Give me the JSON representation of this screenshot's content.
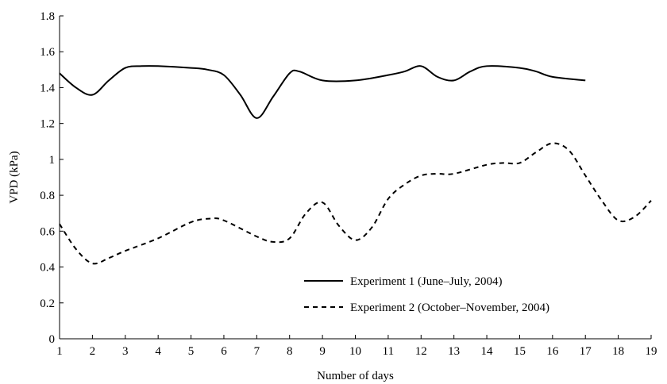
{
  "chart_data": {
    "type": "line",
    "title": "",
    "xlabel": "Number of days",
    "ylabel": "VPD (kPa)",
    "xlim": [
      1,
      19
    ],
    "ylim": [
      0,
      1.8
    ],
    "x_ticks": [
      "1",
      "2",
      "3",
      "4",
      "5",
      "6",
      "7",
      "8",
      "9",
      "10",
      "11",
      "12",
      "13",
      "14",
      "15",
      "16",
      "17",
      "18",
      "19"
    ],
    "y_ticks": [
      "0",
      "0.2",
      "0.4",
      "0.6",
      "0.8",
      "1",
      "1.2",
      "1.4",
      "1.6",
      "1.8"
    ],
    "grid": false,
    "legend_position": "bottom-right",
    "series": [
      {
        "name": "Experiment 1 (June–July, 2004)",
        "style": "solid",
        "color": "#000000",
        "points": [
          [
            1,
            1.48
          ],
          [
            1.5,
            1.4
          ],
          [
            2,
            1.36
          ],
          [
            2.5,
            1.44
          ],
          [
            3,
            1.51
          ],
          [
            3.5,
            1.52
          ],
          [
            4,
            1.52
          ],
          [
            5,
            1.51
          ],
          [
            5.5,
            1.5
          ],
          [
            6,
            1.47
          ],
          [
            6.5,
            1.36
          ],
          [
            7,
            1.23
          ],
          [
            7.5,
            1.35
          ],
          [
            8,
            1.48
          ],
          [
            8.3,
            1.49
          ],
          [
            9,
            1.44
          ],
          [
            10,
            1.44
          ],
          [
            11,
            1.47
          ],
          [
            11.5,
            1.49
          ],
          [
            12,
            1.52
          ],
          [
            12.5,
            1.46
          ],
          [
            13,
            1.44
          ],
          [
            13.5,
            1.49
          ],
          [
            14,
            1.52
          ],
          [
            15,
            1.51
          ],
          [
            15.5,
            1.49
          ],
          [
            16,
            1.46
          ],
          [
            17,
            1.44
          ]
        ]
      },
      {
        "name": "Experiment 2 (October–November, 2004)",
        "style": "dashed",
        "color": "#000000",
        "points": [
          [
            1,
            0.64
          ],
          [
            1.5,
            0.5
          ],
          [
            2,
            0.42
          ],
          [
            2.5,
            0.45
          ],
          [
            3,
            0.49
          ],
          [
            4,
            0.56
          ],
          [
            5,
            0.65
          ],
          [
            5.6,
            0.67
          ],
          [
            6,
            0.66
          ],
          [
            7,
            0.57
          ],
          [
            7.5,
            0.54
          ],
          [
            8,
            0.56
          ],
          [
            8.5,
            0.7
          ],
          [
            9,
            0.76
          ],
          [
            9.5,
            0.63
          ],
          [
            10,
            0.55
          ],
          [
            10.5,
            0.62
          ],
          [
            11,
            0.78
          ],
          [
            11.5,
            0.86
          ],
          [
            12,
            0.91
          ],
          [
            12.5,
            0.92
          ],
          [
            13,
            0.92
          ],
          [
            14,
            0.97
          ],
          [
            14.5,
            0.98
          ],
          [
            15,
            0.98
          ],
          [
            15.5,
            1.04
          ],
          [
            16,
            1.09
          ],
          [
            16.5,
            1.05
          ],
          [
            17,
            0.91
          ],
          [
            17.5,
            0.77
          ],
          [
            18,
            0.66
          ],
          [
            18.5,
            0.68
          ],
          [
            19,
            0.77
          ]
        ]
      }
    ]
  }
}
